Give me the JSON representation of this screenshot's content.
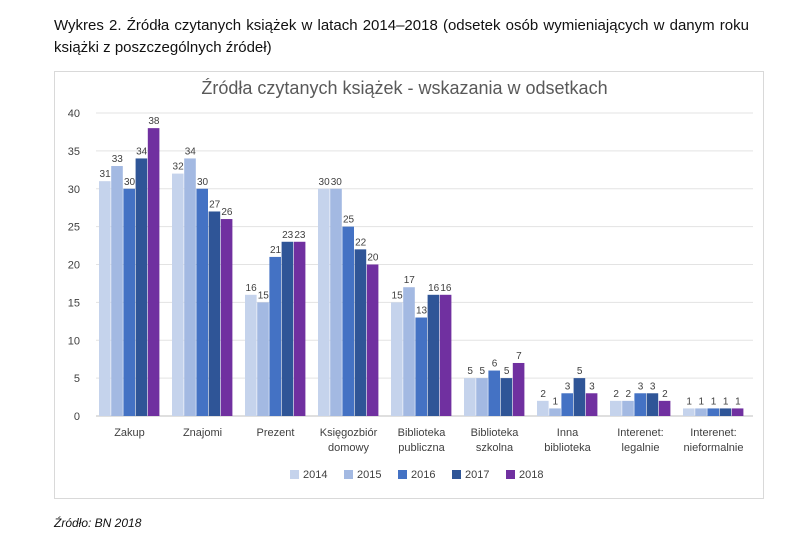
{
  "caption": "Wykres 2. Źródła czytanych książek w latach 2014–2018 (odsetek osób wymieniających w danym roku książki z poszczególnych źródeł)",
  "source": "Źródło: BN 2018",
  "chart_data": {
    "type": "bar",
    "title": "Źródła czytanych książek - wskazania w odsetkach",
    "xlabel": "",
    "ylabel": "",
    "ylim": [
      0,
      40
    ],
    "yticks": [
      0,
      5,
      10,
      15,
      20,
      25,
      30,
      35,
      40
    ],
    "grid": true,
    "legend_position": "bottom",
    "categories": [
      [
        "Zakup"
      ],
      [
        "Znajomi"
      ],
      [
        "Prezent"
      ],
      [
        "Księgozbiór",
        "domowy"
      ],
      [
        "Biblioteka",
        "publiczna"
      ],
      [
        "Biblioteka",
        "szkolna"
      ],
      [
        "Inna",
        "biblioteka"
      ],
      [
        "Interenet:",
        "legalnie"
      ],
      [
        "Interenet:",
        "nieformalnie"
      ]
    ],
    "series": [
      {
        "name": "2014",
        "color": "#c5d3ec",
        "values": [
          31,
          32,
          16,
          30,
          15,
          5,
          2,
          2,
          1
        ]
      },
      {
        "name": "2015",
        "color": "#a3b9e2",
        "values": [
          33,
          34,
          15,
          30,
          17,
          5,
          1,
          2,
          1
        ]
      },
      {
        "name": "2016",
        "color": "#4472c4",
        "values": [
          30,
          30,
          21,
          25,
          13,
          6,
          3,
          3,
          1
        ]
      },
      {
        "name": "2017",
        "color": "#2f5597",
        "values": [
          34,
          27,
          23,
          22,
          16,
          5,
          5,
          3,
          1
        ]
      },
      {
        "name": "2018",
        "color": "#7030a0",
        "values": [
          38,
          26,
          23,
          20,
          16,
          7,
          3,
          2,
          1
        ]
      }
    ]
  }
}
